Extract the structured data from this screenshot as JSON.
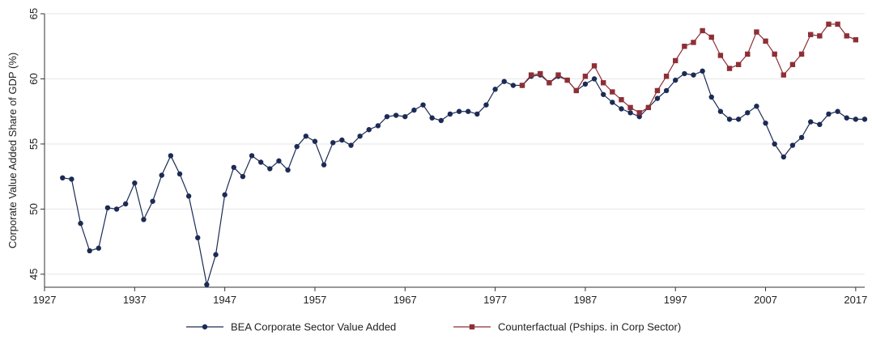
{
  "chart_data": {
    "type": "line",
    "y_label": "Corporate Value Added Share of GDP (%)",
    "x": [
      1929,
      1930,
      1931,
      1932,
      1933,
      1934,
      1935,
      1936,
      1937,
      1938,
      1939,
      1940,
      1941,
      1942,
      1943,
      1944,
      1945,
      1946,
      1947,
      1948,
      1949,
      1950,
      1951,
      1952,
      1953,
      1954,
      1955,
      1956,
      1957,
      1958,
      1959,
      1960,
      1961,
      1962,
      1963,
      1964,
      1965,
      1966,
      1967,
      1968,
      1969,
      1970,
      1971,
      1972,
      1973,
      1974,
      1975,
      1976,
      1977,
      1978,
      1979,
      1980,
      1981,
      1982,
      1983,
      1984,
      1985,
      1986,
      1987,
      1988,
      1989,
      1990,
      1991,
      1992,
      1993,
      1994,
      1995,
      1996,
      1997,
      1998,
      1999,
      2000,
      2001,
      2002,
      2003,
      2004,
      2005,
      2006,
      2007,
      2008,
      2009,
      2010,
      2011,
      2012,
      2013,
      2014,
      2015,
      2016,
      2017,
      2018
    ],
    "series": [
      {
        "name": "BEA Corporate Sector Value Added",
        "color": "#1c2b55",
        "marker": "circle",
        "values": [
          52.4,
          52.3,
          48.9,
          46.8,
          47.0,
          50.1,
          50.0,
          50.4,
          52.0,
          49.2,
          50.6,
          52.6,
          54.1,
          52.7,
          51.0,
          47.8,
          44.2,
          46.5,
          51.1,
          53.2,
          52.5,
          54.1,
          53.6,
          53.1,
          53.7,
          53.0,
          54.8,
          55.6,
          55.2,
          53.4,
          55.1,
          55.3,
          54.9,
          55.6,
          56.1,
          56.4,
          57.1,
          57.2,
          57.1,
          57.6,
          58.0,
          57.0,
          56.8,
          57.3,
          57.5,
          57.5,
          57.3,
          58.0,
          59.2,
          59.8,
          59.5,
          59.5,
          60.2,
          60.3,
          59.7,
          60.2,
          59.9,
          59.1,
          59.6,
          60.0,
          58.8,
          58.2,
          57.7,
          57.4,
          57.1,
          57.8,
          58.5,
          59.1,
          59.9,
          60.4,
          60.3,
          60.6,
          58.6,
          57.5,
          56.9,
          56.9,
          57.4,
          57.9,
          56.6,
          55.0,
          54.0,
          54.9,
          55.5,
          56.7,
          56.5,
          57.3,
          57.5,
          57.0,
          56.9,
          56.9
        ]
      },
      {
        "name": "Counterfactual (Pships. in Corp Sector)",
        "color": "#8e2f36",
        "marker": "square",
        "values": [
          null,
          null,
          null,
          null,
          null,
          null,
          null,
          null,
          null,
          null,
          null,
          null,
          null,
          null,
          null,
          null,
          null,
          null,
          null,
          null,
          null,
          null,
          null,
          null,
          null,
          null,
          null,
          null,
          null,
          null,
          null,
          null,
          null,
          null,
          null,
          null,
          null,
          null,
          null,
          null,
          null,
          null,
          null,
          null,
          null,
          null,
          null,
          null,
          null,
          null,
          null,
          59.5,
          60.3,
          60.4,
          59.7,
          60.3,
          59.9,
          59.1,
          60.2,
          61.0,
          59.7,
          59.0,
          58.4,
          57.8,
          57.4,
          57.8,
          59.1,
          60.2,
          61.4,
          62.5,
          62.8,
          63.7,
          63.2,
          61.8,
          60.8,
          61.1,
          61.9,
          63.6,
          62.9,
          61.9,
          60.3,
          61.1,
          61.9,
          63.4,
          63.3,
          64.2,
          64.2,
          63.3,
          63.0,
          null
        ]
      }
    ],
    "xlim": [
      1927,
      2018
    ],
    "xticks": [
      1927,
      1937,
      1947,
      1957,
      1967,
      1977,
      1987,
      1997,
      2007,
      2017
    ],
    "ylim": [
      44,
      65
    ],
    "yticks": [
      45,
      50,
      55,
      60,
      65
    ],
    "grid": true
  }
}
